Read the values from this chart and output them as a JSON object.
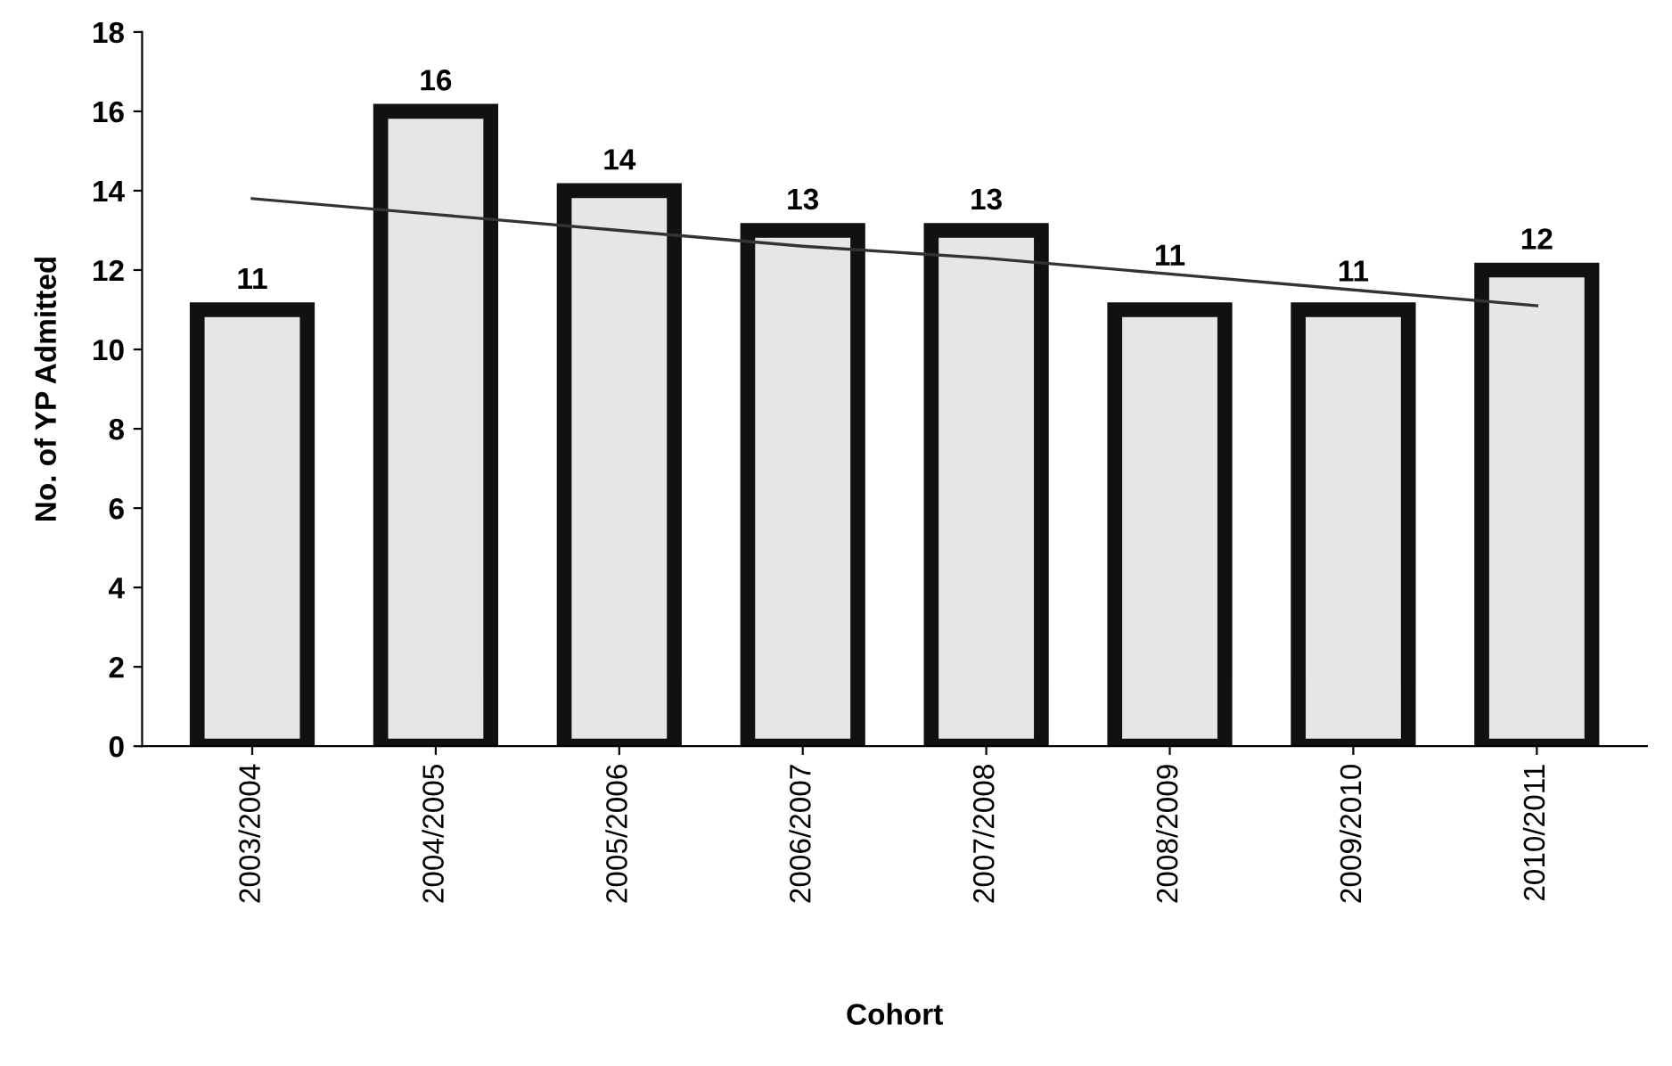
{
  "chart_data": {
    "type": "bar",
    "xlabel": "Cohort",
    "ylabel": "No. of YP Admitted",
    "categories": [
      "2003/2004",
      "2004/2005",
      "2005/2006",
      "2006/2007",
      "2007/2008",
      "2008/2009",
      "2009/2010",
      "2010/2011"
    ],
    "series": [
      {
        "type": "bar",
        "color": "#e6e6e6",
        "values": [
          11,
          16,
          14,
          13,
          13,
          11,
          11,
          12
        ],
        "data_labels": true
      },
      {
        "type": "line",
        "color": "#333333",
        "values": [
          13.8,
          13.4,
          13.0,
          12.6,
          12.3,
          11.9,
          11.5,
          11.1
        ]
      }
    ],
    "ylim": [
      0,
      18
    ],
    "yticks": [
      0,
      2,
      4,
      6,
      8,
      10,
      12,
      14,
      16,
      18
    ],
    "grid": false,
    "legend": false
  }
}
